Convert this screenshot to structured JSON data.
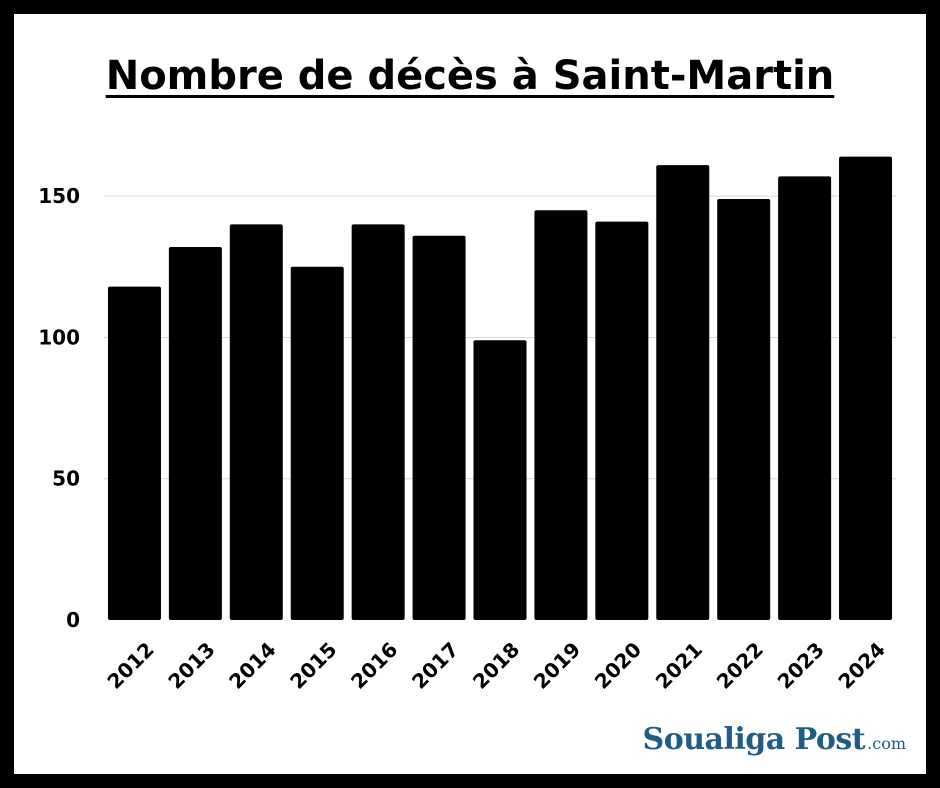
{
  "chart_data": {
    "type": "bar",
    "title": "Nombre de décès à Saint-Martin",
    "categories": [
      "2012",
      "2013",
      "2014",
      "2015",
      "2016",
      "2017",
      "2018",
      "2019",
      "2020",
      "2021",
      "2022",
      "2023",
      "2024"
    ],
    "values": [
      118,
      132,
      140,
      125,
      140,
      136,
      99,
      145,
      141,
      161,
      149,
      157,
      164
    ],
    "ylim": [
      0,
      172
    ],
    "yticks": [
      0,
      50,
      100,
      150
    ],
    "grid": true,
    "bar_color": "#000000",
    "grid_color": "#d9d9d9"
  },
  "brand": {
    "name": "Soualiga Post",
    "suffix": ".com",
    "color": "#1f5c86"
  }
}
